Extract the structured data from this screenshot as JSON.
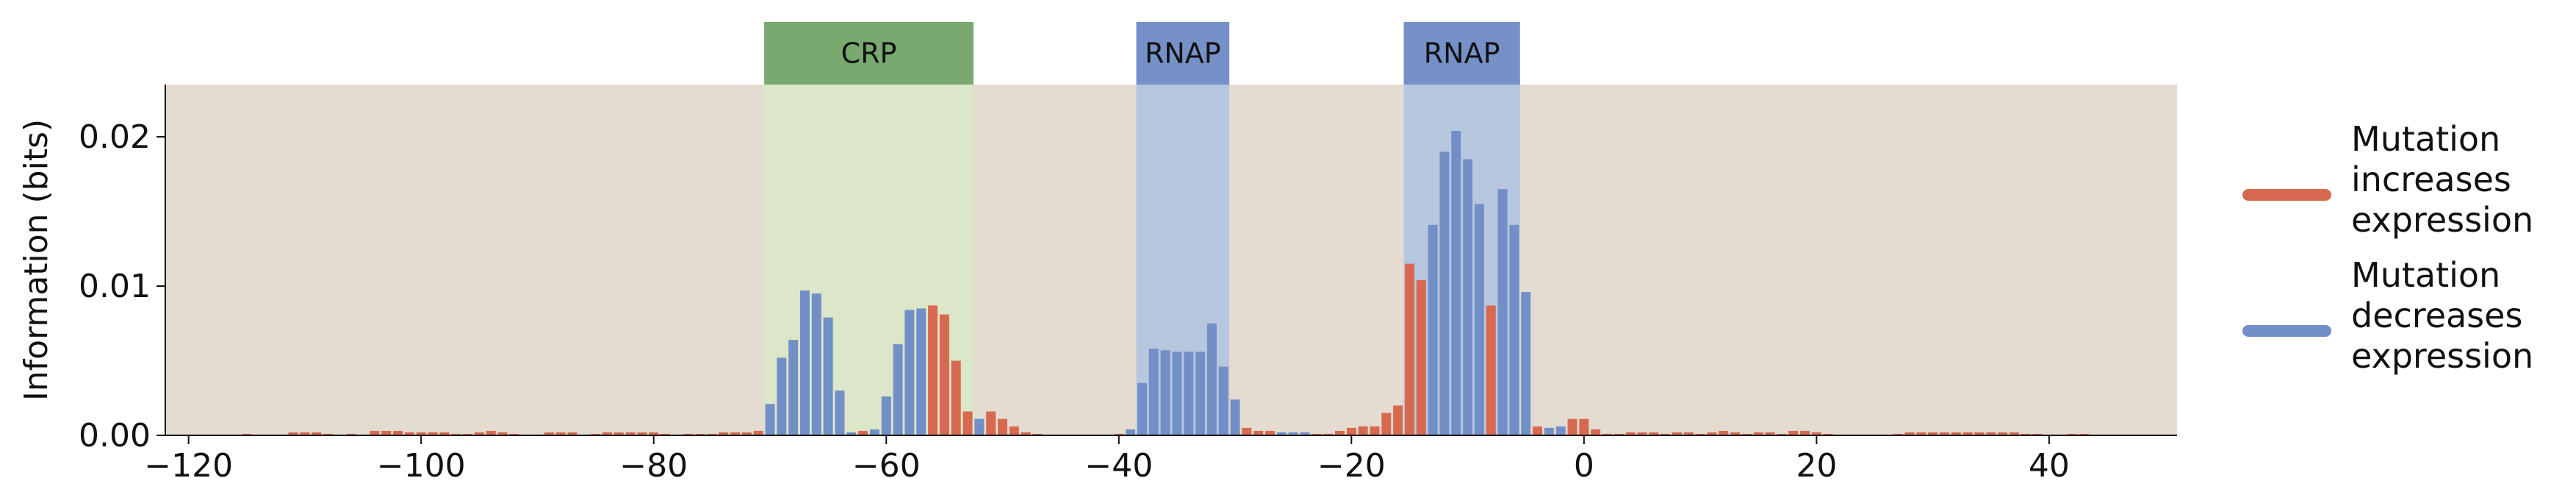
{
  "chart_data": {
    "type": "bar",
    "ylabel": "Information (bits)",
    "xlabel": "",
    "title": "",
    "xlim": [
      -122,
      51
    ],
    "ylim": [
      0,
      0.0235
    ],
    "x_ticks": [
      -120,
      -100,
      -80,
      -60,
      -40,
      -20,
      0,
      20,
      40
    ],
    "x_tick_labels": [
      "−120",
      "−100",
      "−80",
      "−60",
      "−40",
      "−20",
      "0",
      "20",
      "40"
    ],
    "y_ticks": [
      0,
      0.01,
      0.02
    ],
    "y_tick_labels": [
      "0.00",
      "0.01",
      "0.02"
    ],
    "grid": false,
    "legend_position": "right",
    "colors": {
      "plot_background": "#e4dcd1",
      "increases": "#d6694f",
      "decreases": "#738fc7",
      "crp_shade": "#dce6c8",
      "crp_header": "#79a96f",
      "rnap_shade": "#b8c7e0",
      "rnap_header": "#7690c8"
    },
    "regions": [
      {
        "label": "CRP",
        "start": -70.5,
        "end": -52.5,
        "kind": "crp"
      },
      {
        "label": "RNAP",
        "start": -38.5,
        "end": -30.5,
        "kind": "rnap"
      },
      {
        "label": "RNAP",
        "start": -15.5,
        "end": -5.5,
        "kind": "rnap"
      }
    ],
    "series": [
      {
        "name": "Mutation increases expression",
        "key": "increases"
      },
      {
        "name": "Mutation decreases expression",
        "key": "decreases"
      }
    ],
    "bars": [
      {
        "x": -115,
        "y": 0.0001,
        "s": "increases"
      },
      {
        "x": -111,
        "y": 0.0002,
        "s": "increases"
      },
      {
        "x": -110,
        "y": 0.0002,
        "s": "increases"
      },
      {
        "x": -109,
        "y": 0.0002,
        "s": "increases"
      },
      {
        "x": -108,
        "y": 0.0001,
        "s": "increases"
      },
      {
        "x": -106,
        "y": 0.0001,
        "s": "increases"
      },
      {
        "x": -104,
        "y": 0.0003,
        "s": "increases"
      },
      {
        "x": -103,
        "y": 0.0003,
        "s": "increases"
      },
      {
        "x": -102,
        "y": 0.0003,
        "s": "increases"
      },
      {
        "x": -101,
        "y": 0.0002,
        "s": "increases"
      },
      {
        "x": -100,
        "y": 0.0002,
        "s": "increases"
      },
      {
        "x": -99,
        "y": 0.0002,
        "s": "increases"
      },
      {
        "x": -98,
        "y": 0.0002,
        "s": "increases"
      },
      {
        "x": -97,
        "y": 0.0001,
        "s": "increases"
      },
      {
        "x": -96,
        "y": 0.0001,
        "s": "increases"
      },
      {
        "x": -95,
        "y": 0.0002,
        "s": "increases"
      },
      {
        "x": -94,
        "y": 0.0003,
        "s": "increases"
      },
      {
        "x": -93,
        "y": 0.0002,
        "s": "increases"
      },
      {
        "x": -92,
        "y": 0.0001,
        "s": "increases"
      },
      {
        "x": -89,
        "y": 0.0002,
        "s": "increases"
      },
      {
        "x": -88,
        "y": 0.0002,
        "s": "increases"
      },
      {
        "x": -87,
        "y": 0.0002,
        "s": "increases"
      },
      {
        "x": -85,
        "y": 0.0001,
        "s": "increases"
      },
      {
        "x": -84,
        "y": 0.0002,
        "s": "increases"
      },
      {
        "x": -83,
        "y": 0.0002,
        "s": "increases"
      },
      {
        "x": -82,
        "y": 0.0002,
        "s": "increases"
      },
      {
        "x": -81,
        "y": 0.0002,
        "s": "increases"
      },
      {
        "x": -80,
        "y": 0.0002,
        "s": "increases"
      },
      {
        "x": -79,
        "y": 0.0001,
        "s": "increases"
      },
      {
        "x": -77,
        "y": 0.0001,
        "s": "increases"
      },
      {
        "x": -76,
        "y": 0.0001,
        "s": "increases"
      },
      {
        "x": -75,
        "y": 0.0001,
        "s": "increases"
      },
      {
        "x": -74,
        "y": 0.0002,
        "s": "increases"
      },
      {
        "x": -73,
        "y": 0.0002,
        "s": "increases"
      },
      {
        "x": -72,
        "y": 0.0002,
        "s": "increases"
      },
      {
        "x": -71,
        "y": 0.0003,
        "s": "increases"
      },
      {
        "x": -70,
        "y": 0.0021,
        "s": "decreases"
      },
      {
        "x": -69,
        "y": 0.0052,
        "s": "decreases"
      },
      {
        "x": -68,
        "y": 0.0064,
        "s": "decreases"
      },
      {
        "x": -67,
        "y": 0.0097,
        "s": "decreases"
      },
      {
        "x": -66,
        "y": 0.0095,
        "s": "decreases"
      },
      {
        "x": -65,
        "y": 0.0079,
        "s": "decreases"
      },
      {
        "x": -64,
        "y": 0.003,
        "s": "decreases"
      },
      {
        "x": -63,
        "y": 0.0002,
        "s": "decreases"
      },
      {
        "x": -62,
        "y": 0.0003,
        "s": "increases"
      },
      {
        "x": -61,
        "y": 0.0004,
        "s": "decreases"
      },
      {
        "x": -60,
        "y": 0.0026,
        "s": "decreases"
      },
      {
        "x": -59,
        "y": 0.0061,
        "s": "decreases"
      },
      {
        "x": -58,
        "y": 0.0084,
        "s": "decreases"
      },
      {
        "x": -57,
        "y": 0.0085,
        "s": "decreases"
      },
      {
        "x": -56,
        "y": 0.0087,
        "s": "increases"
      },
      {
        "x": -55,
        "y": 0.0081,
        "s": "increases"
      },
      {
        "x": -54,
        "y": 0.005,
        "s": "increases"
      },
      {
        "x": -53,
        "y": 0.0016,
        "s": "increases"
      },
      {
        "x": -52,
        "y": 0.0011,
        "s": "decreases"
      },
      {
        "x": -51,
        "y": 0.0016,
        "s": "increases"
      },
      {
        "x": -50,
        "y": 0.0011,
        "s": "increases"
      },
      {
        "x": -49,
        "y": 0.0006,
        "s": "increases"
      },
      {
        "x": -48,
        "y": 0.0002,
        "s": "increases"
      },
      {
        "x": -47,
        "y": 0.0001,
        "s": "increases"
      },
      {
        "x": -40,
        "y": 0.0001,
        "s": "increases"
      },
      {
        "x": -39,
        "y": 0.0004,
        "s": "decreases"
      },
      {
        "x": -38,
        "y": 0.0035,
        "s": "decreases"
      },
      {
        "x": -37,
        "y": 0.0058,
        "s": "decreases"
      },
      {
        "x": -36,
        "y": 0.0057,
        "s": "decreases"
      },
      {
        "x": -35,
        "y": 0.0056,
        "s": "decreases"
      },
      {
        "x": -34,
        "y": 0.0056,
        "s": "decreases"
      },
      {
        "x": -33,
        "y": 0.0056,
        "s": "decreases"
      },
      {
        "x": -32,
        "y": 0.0075,
        "s": "decreases"
      },
      {
        "x": -31,
        "y": 0.0046,
        "s": "decreases"
      },
      {
        "x": -30,
        "y": 0.0024,
        "s": "decreases"
      },
      {
        "x": -29,
        "y": 0.0005,
        "s": "increases"
      },
      {
        "x": -28,
        "y": 0.0003,
        "s": "increases"
      },
      {
        "x": -27,
        "y": 0.0003,
        "s": "increases"
      },
      {
        "x": -26,
        "y": 0.0002,
        "s": "decreases"
      },
      {
        "x": -25,
        "y": 0.0002,
        "s": "decreases"
      },
      {
        "x": -24,
        "y": 0.0002,
        "s": "decreases"
      },
      {
        "x": -23,
        "y": 0.0001,
        "s": "increases"
      },
      {
        "x": -22,
        "y": 0.0001,
        "s": "increases"
      },
      {
        "x": -21,
        "y": 0.0003,
        "s": "increases"
      },
      {
        "x": -20,
        "y": 0.0005,
        "s": "increases"
      },
      {
        "x": -19,
        "y": 0.0006,
        "s": "increases"
      },
      {
        "x": -18,
        "y": 0.0006,
        "s": "increases"
      },
      {
        "x": -17,
        "y": 0.0015,
        "s": "increases"
      },
      {
        "x": -16,
        "y": 0.002,
        "s": "increases"
      },
      {
        "x": -15,
        "y": 0.0115,
        "s": "increases"
      },
      {
        "x": -14,
        "y": 0.0104,
        "s": "increases"
      },
      {
        "x": -13,
        "y": 0.0141,
        "s": "decreases"
      },
      {
        "x": -12,
        "y": 0.019,
        "s": "decreases"
      },
      {
        "x": -11,
        "y": 0.0204,
        "s": "decreases"
      },
      {
        "x": -10,
        "y": 0.0185,
        "s": "decreases"
      },
      {
        "x": -9,
        "y": 0.0155,
        "s": "decreases"
      },
      {
        "x": -8,
        "y": 0.0087,
        "s": "increases"
      },
      {
        "x": -7,
        "y": 0.0165,
        "s": "decreases"
      },
      {
        "x": -6,
        "y": 0.0141,
        "s": "decreases"
      },
      {
        "x": -5,
        "y": 0.0096,
        "s": "decreases"
      },
      {
        "x": -4,
        "y": 0.0006,
        "s": "increases"
      },
      {
        "x": -3,
        "y": 0.0005,
        "s": "decreases"
      },
      {
        "x": -2,
        "y": 0.0006,
        "s": "decreases"
      },
      {
        "x": -1,
        "y": 0.0011,
        "s": "increases"
      },
      {
        "x": 0,
        "y": 0.0011,
        "s": "increases"
      },
      {
        "x": 1,
        "y": 0.0004,
        "s": "increases"
      },
      {
        "x": 2,
        "y": 0.0001,
        "s": "increases"
      },
      {
        "x": 3,
        "y": 0.0001,
        "s": "increases"
      },
      {
        "x": 4,
        "y": 0.0002,
        "s": "increases"
      },
      {
        "x": 5,
        "y": 0.0002,
        "s": "increases"
      },
      {
        "x": 6,
        "y": 0.0002,
        "s": "increases"
      },
      {
        "x": 7,
        "y": 0.0001,
        "s": "increases"
      },
      {
        "x": 8,
        "y": 0.0002,
        "s": "increases"
      },
      {
        "x": 9,
        "y": 0.0002,
        "s": "increases"
      },
      {
        "x": 10,
        "y": 0.0001,
        "s": "increases"
      },
      {
        "x": 11,
        "y": 0.0002,
        "s": "increases"
      },
      {
        "x": 12,
        "y": 0.0003,
        "s": "increases"
      },
      {
        "x": 13,
        "y": 0.0002,
        "s": "increases"
      },
      {
        "x": 14,
        "y": 0.0001,
        "s": "increases"
      },
      {
        "x": 15,
        "y": 0.0002,
        "s": "increases"
      },
      {
        "x": 16,
        "y": 0.0002,
        "s": "increases"
      },
      {
        "x": 17,
        "y": 0.0001,
        "s": "increases"
      },
      {
        "x": 18,
        "y": 0.0003,
        "s": "increases"
      },
      {
        "x": 19,
        "y": 0.0003,
        "s": "increases"
      },
      {
        "x": 20,
        "y": 0.0002,
        "s": "increases"
      },
      {
        "x": 21,
        "y": 0.0001,
        "s": "increases"
      },
      {
        "x": 27,
        "y": 0.0001,
        "s": "increases"
      },
      {
        "x": 28,
        "y": 0.0002,
        "s": "increases"
      },
      {
        "x": 29,
        "y": 0.0002,
        "s": "increases"
      },
      {
        "x": 30,
        "y": 0.0002,
        "s": "increases"
      },
      {
        "x": 31,
        "y": 0.0002,
        "s": "increases"
      },
      {
        "x": 32,
        "y": 0.0002,
        "s": "increases"
      },
      {
        "x": 33,
        "y": 0.0002,
        "s": "increases"
      },
      {
        "x": 34,
        "y": 0.0002,
        "s": "increases"
      },
      {
        "x": 35,
        "y": 0.0002,
        "s": "increases"
      },
      {
        "x": 36,
        "y": 0.0002,
        "s": "increases"
      },
      {
        "x": 37,
        "y": 0.0002,
        "s": "increases"
      },
      {
        "x": 38,
        "y": 0.0001,
        "s": "increases"
      },
      {
        "x": 39,
        "y": 0.0001,
        "s": "increases"
      },
      {
        "x": 42,
        "y": 0.0001,
        "s": "increases"
      },
      {
        "x": 43,
        "y": 0.0001,
        "s": "increases"
      }
    ]
  }
}
